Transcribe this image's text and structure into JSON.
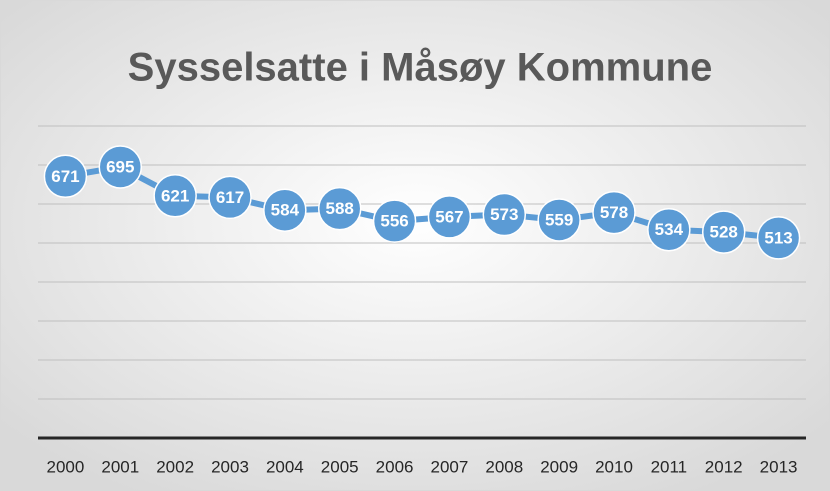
{
  "chart_data": {
    "type": "line",
    "title": "Sysselsatte i Måsøy Kommune",
    "categories": [
      "2000",
      "2001",
      "2002",
      "2003",
      "2004",
      "2005",
      "2006",
      "2007",
      "2008",
      "2009",
      "2010",
      "2011",
      "2012",
      "2013"
    ],
    "series": [
      {
        "name": "Sysselsatte",
        "color": "#5b9bd5",
        "values": [
          671,
          695,
          621,
          617,
          584,
          588,
          556,
          567,
          573,
          559,
          578,
          534,
          528,
          513
        ]
      }
    ],
    "ylim": [
      0,
      800
    ],
    "yticks": [
      0,
      100,
      200,
      300,
      400,
      500,
      600,
      700,
      800
    ],
    "grid": true,
    "data_labels": true
  }
}
